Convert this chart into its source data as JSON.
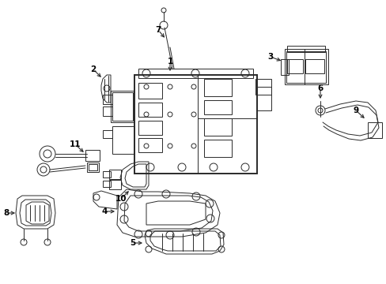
{
  "bg_color": "#ffffff",
  "line_color": "#2a2a2a",
  "label_color": "#000000",
  "figsize": [
    4.89,
    3.6
  ],
  "dpi": 100,
  "lw_main": 1.1,
  "lw_thin": 0.7,
  "lw_thick": 1.4
}
